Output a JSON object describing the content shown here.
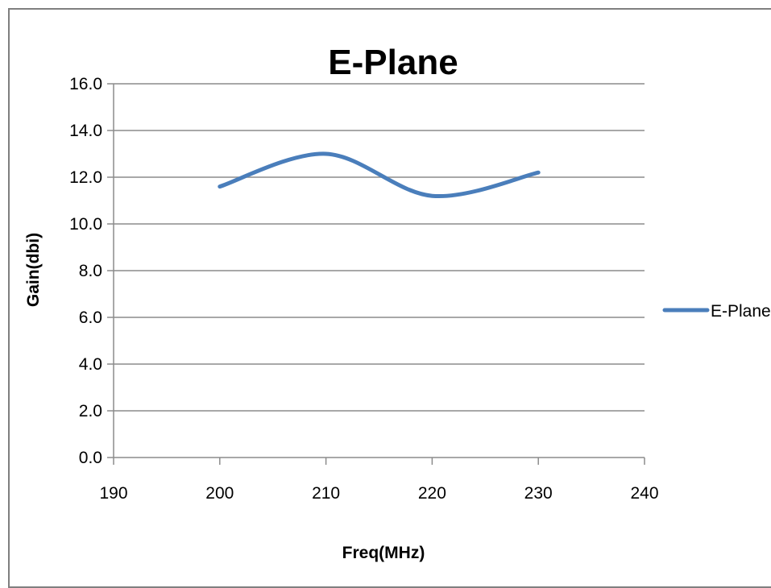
{
  "chart_data": {
    "type": "line",
    "title": "E-Plane",
    "xlabel": "Freq(MHz)",
    "ylabel": "Gain(dbi)",
    "xlim": [
      190,
      240
    ],
    "ylim": [
      0,
      16
    ],
    "x_ticks": [
      "190",
      "200",
      "210",
      "220",
      "230",
      "240"
    ],
    "y_ticks": [
      "0.0",
      "2.0",
      "4.0",
      "6.0",
      "8.0",
      "10.0",
      "12.0",
      "14.0",
      "16.0"
    ],
    "grid": true,
    "smooth": true,
    "legend_position": "right",
    "series": [
      {
        "name": "E-Plane",
        "color": "#4a7ebb",
        "x": [
          200,
          210,
          220,
          230
        ],
        "y": [
          11.6,
          13.0,
          11.2,
          12.2
        ]
      }
    ]
  }
}
